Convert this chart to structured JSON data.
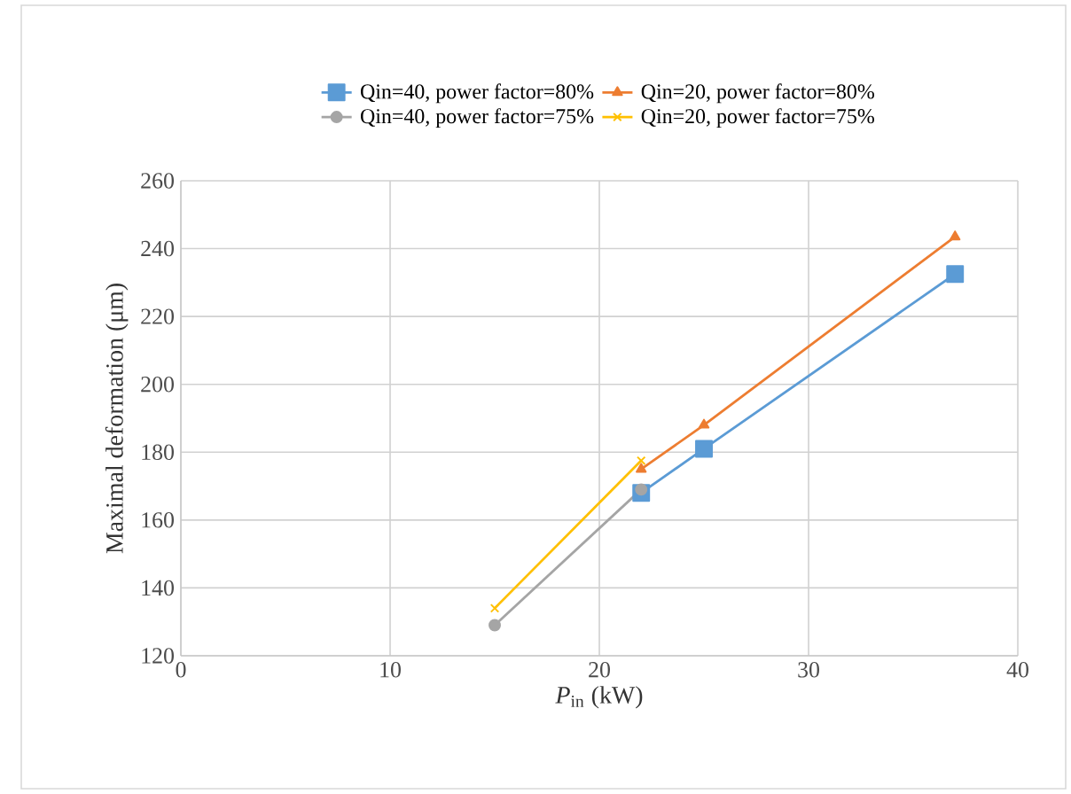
{
  "chart_data": {
    "type": "line",
    "xlabel": "*P*$_{in}$ (kW)",
    "ylabel": "Maximal deformation (μm)",
    "xlim": [
      0,
      40
    ],
    "xticks": [
      0,
      10,
      20,
      30,
      40
    ],
    "ylim": [
      120,
      260
    ],
    "yticks": [
      120,
      140,
      160,
      180,
      200,
      220,
      240,
      260
    ],
    "grid": true,
    "legend": "top",
    "line_style": "solid",
    "series": [
      {
        "name": "Qin=40, power factor=80%",
        "color": "#5b9bd5",
        "marker": "square",
        "x": [
          22,
          25,
          37
        ],
        "values": [
          168,
          181,
          232.5
        ]
      },
      {
        "name": "Qin=20, power factor=80%",
        "color": "#ed7d31",
        "marker": "triangle",
        "x": [
          22,
          25,
          37
        ],
        "values": [
          175,
          188,
          243.5
        ]
      },
      {
        "name": "Qin=40, power factor=75%",
        "color": "#a5a5a5",
        "marker": "circle",
        "x": [
          15,
          22
        ],
        "values": [
          129,
          169
        ]
      },
      {
        "name": "Qin=20, power factor=75%",
        "color": "#ffc000",
        "marker": "cross",
        "x": [
          15,
          22
        ],
        "values": [
          134,
          177.5
        ]
      }
    ]
  }
}
